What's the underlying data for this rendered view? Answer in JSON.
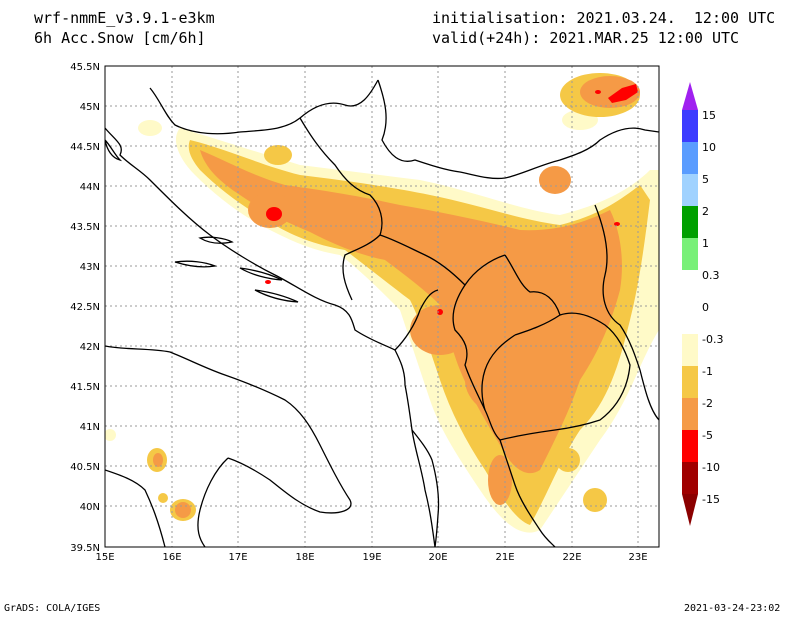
{
  "header": {
    "model": "wrf-nmmE_v3.9.1-e3km",
    "variable": "6h Acc.Snow [cm/6h]",
    "init": "initialisation: 2021.03.24.  12:00 UTC",
    "valid": "valid(+24h): 2021.MAR.25 12:00 UTC"
  },
  "footer": {
    "left": "GrADS: COLA/IGES",
    "right": "2021-03-24-23:02"
  },
  "map": {
    "lat_ticks": [
      "45.5N",
      "45N",
      "44.5N",
      "44N",
      "43.5N",
      "43N",
      "42.5N",
      "42N",
      "41.5N",
      "41N",
      "40.5N",
      "40N",
      "39.5N"
    ],
    "lon_ticks": [
      "15E",
      "16E",
      "17E",
      "18E",
      "19E",
      "20E",
      "21E",
      "22E",
      "23E"
    ],
    "lat_range": [
      39.5,
      45.5
    ],
    "lon_range": [
      15,
      23.3
    ]
  },
  "colorbar": {
    "labels": [
      "15",
      "10",
      "5",
      "2",
      "1",
      "0.3",
      "0",
      "-0.3",
      "-1",
      "-2",
      "-5",
      "-10",
      "-15"
    ],
    "colors": [
      "#a020f0",
      "#3c3cff",
      "#5a9cff",
      "#a0d2ff",
      "#00a000",
      "#78f078",
      "#ffffff",
      "#ffffff",
      "#fffac8",
      "#f5c846",
      "#f59a46",
      "#ff0000",
      "#a00000"
    ]
  },
  "snow_colors": {
    "light": "#fffac8",
    "moderate": "#f5c846",
    "heavy": "#f59a46",
    "extreme": "#ff0000"
  }
}
